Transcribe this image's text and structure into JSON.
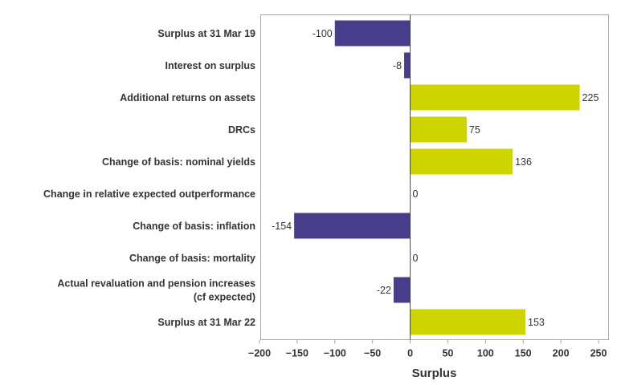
{
  "chart_data": {
    "type": "bar",
    "orientation": "horizontal",
    "categories": [
      [
        "Surplus at 31 Mar 19"
      ],
      [
        "Interest on surplus"
      ],
      [
        "Additional returns on assets"
      ],
      [
        "DRCs"
      ],
      [
        "Change of basis: nominal yields"
      ],
      [
        "Change in relative expected outperformance"
      ],
      [
        "Change of basis: inflation"
      ],
      [
        "Change of basis: mortality"
      ],
      [
        "Actual revaluation and pension increases",
        "(cf expected)"
      ],
      [
        "Surplus at 31 Mar 22"
      ]
    ],
    "values": [
      -100,
      -8,
      225,
      75,
      136,
      0,
      -154,
      0,
      -22,
      153
    ],
    "data_labels": [
      "-100",
      "-8",
      "225",
      "75",
      "136",
      "0",
      "-154",
      "0",
      "-22",
      "153"
    ],
    "xlabel": "Surplus",
    "xlim": [
      -200,
      250
    ],
    "xticks": [
      -200,
      -150,
      -100,
      -50,
      0,
      50,
      100,
      150,
      200,
      250
    ],
    "xtick_labels": [
      "−200",
      "−150",
      "−100",
      "−50",
      "0",
      "50",
      "100",
      "150",
      "200",
      "250"
    ],
    "colors": {
      "negative": "#483d8b",
      "positive": "#cdd400"
    },
    "grid": false,
    "legend": "none"
  }
}
